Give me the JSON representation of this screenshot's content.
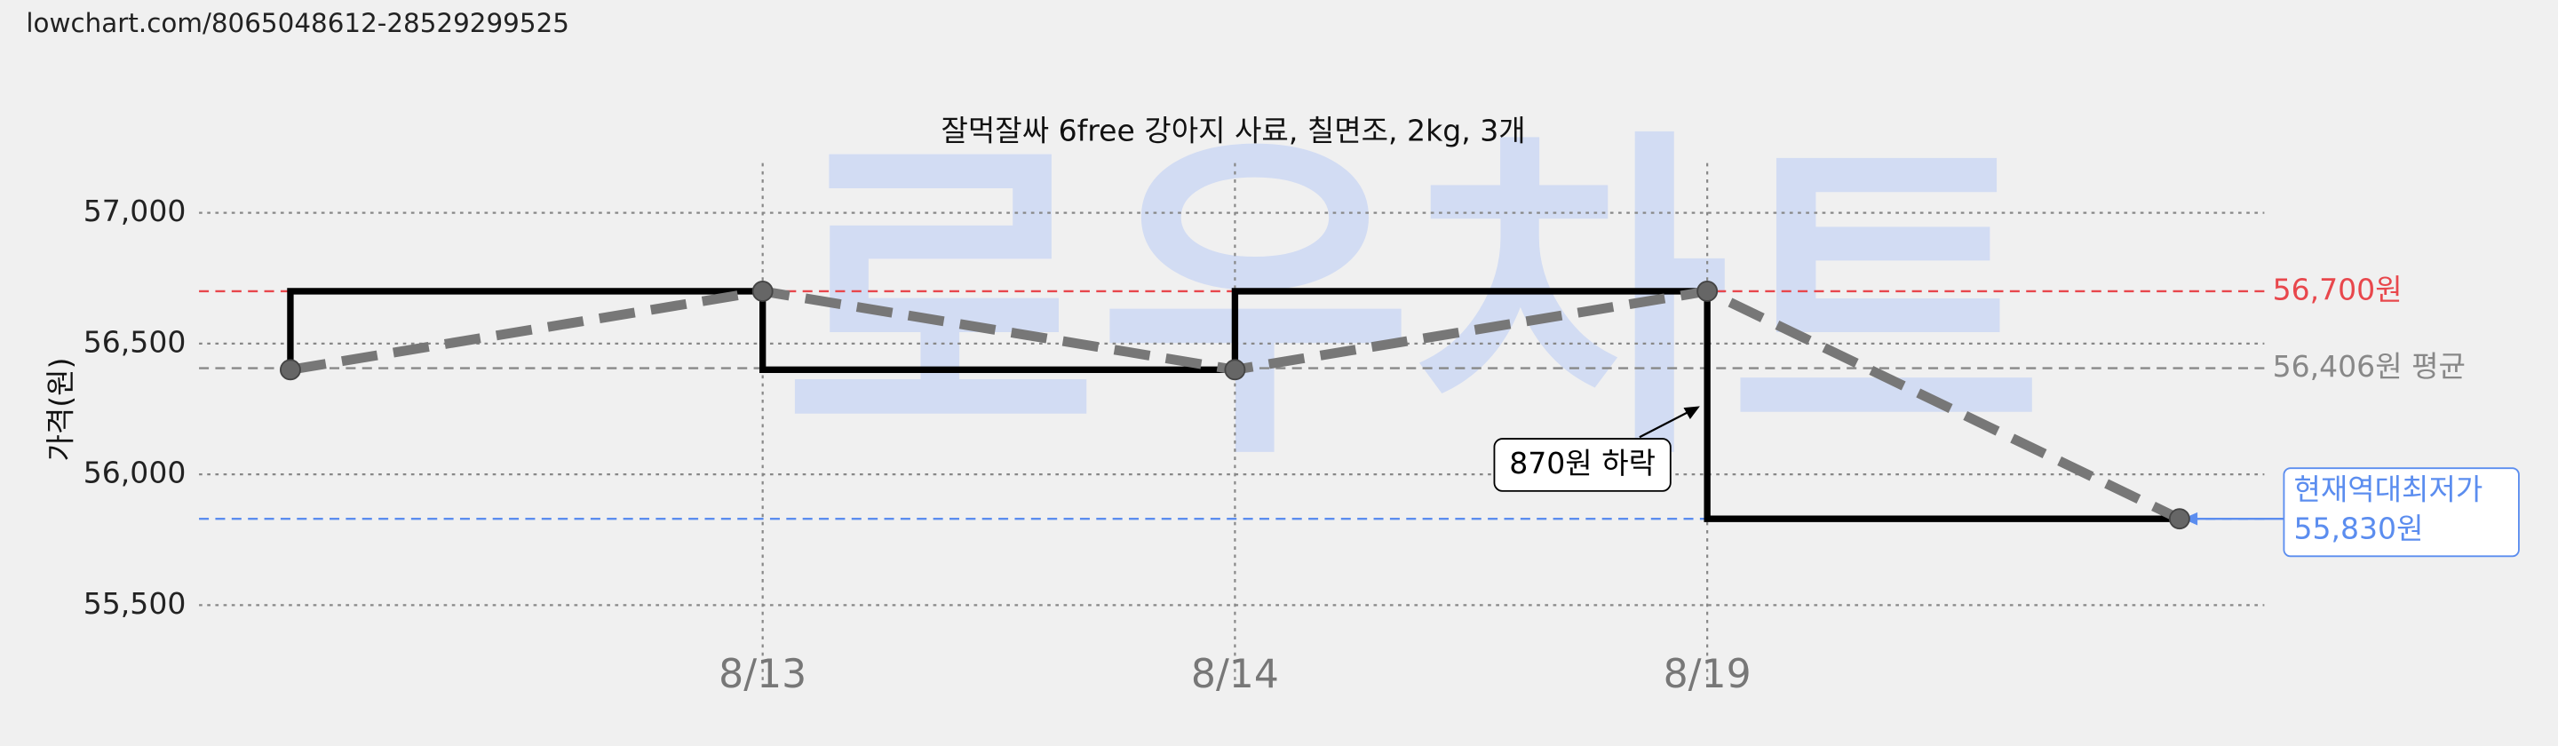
{
  "url": "lowchart.com/8065048612-28529299525",
  "chart_data": {
    "type": "line",
    "title": "잘먹잘싸 6free 강아지 사료, 칠면조, 2kg, 3개",
    "ylabel": "가격(원)",
    "watermark": "로우차트",
    "categories": [
      null,
      "8/13",
      "8/14",
      "8/19",
      null
    ],
    "values": [
      56400,
      56700,
      56400,
      56700,
      55830
    ],
    "line_color": "#777777",
    "step_color": "#000000",
    "ylim": [
      55350,
      57190
    ],
    "yticks": [
      {
        "value": 55500,
        "label": "55,500"
      },
      {
        "value": 56000,
        "label": "56,000"
      },
      {
        "value": 56500,
        "label": "56,500"
      },
      {
        "value": 57000,
        "label": "57,000"
      }
    ],
    "grid": true,
    "hlines": [
      {
        "value": 56700,
        "label": "56,700원",
        "color": "#e8474c"
      },
      {
        "value": 56406,
        "label": "56,406원 평균",
        "color": "#888888"
      },
      {
        "value": 55830,
        "label": "55,830원",
        "title": "현재역대최저가",
        "color": "#5b8def"
      }
    ],
    "annotation": "870원 하락"
  }
}
